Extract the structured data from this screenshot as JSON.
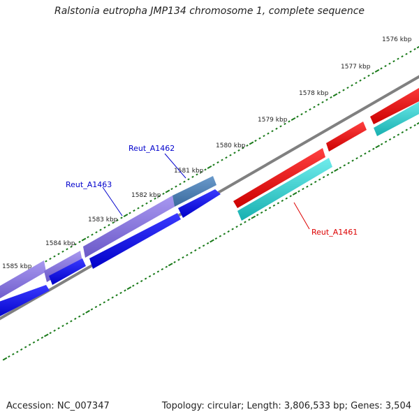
{
  "title": "Ralstonia eutropha JMP134 chromosome 1, complete sequence",
  "footer": {
    "accession": "Accession: NC_007347",
    "summary": "Topology: circular; Length: 3,806,533 bp; Genes: 3,504"
  },
  "kbp_labels": [
    "1576 kbp",
    "1577 kbp",
    "1578 kbp",
    "1579 kbp",
    "1580 kbp",
    "1581 kbp",
    "1582 kbp",
    "1583 kbp",
    "1584 kbp",
    "1585 kbp"
  ],
  "gene_labels": [
    {
      "name": "Reut_A1462",
      "color": "#0000cc"
    },
    {
      "name": "Reut_A1463",
      "color": "#0000cc"
    },
    {
      "name": "Reut_A1461",
      "color": "#dd0000"
    }
  ],
  "colors": {
    "backbone": "#808080",
    "tick": "#1a7a1a",
    "purple_gene": "#7b68d8",
    "blue_gene": "#0000ee",
    "steel_gene": "#4a7aad",
    "red_gene": "#ee0000",
    "cyan_gene": "#22c8c8"
  }
}
